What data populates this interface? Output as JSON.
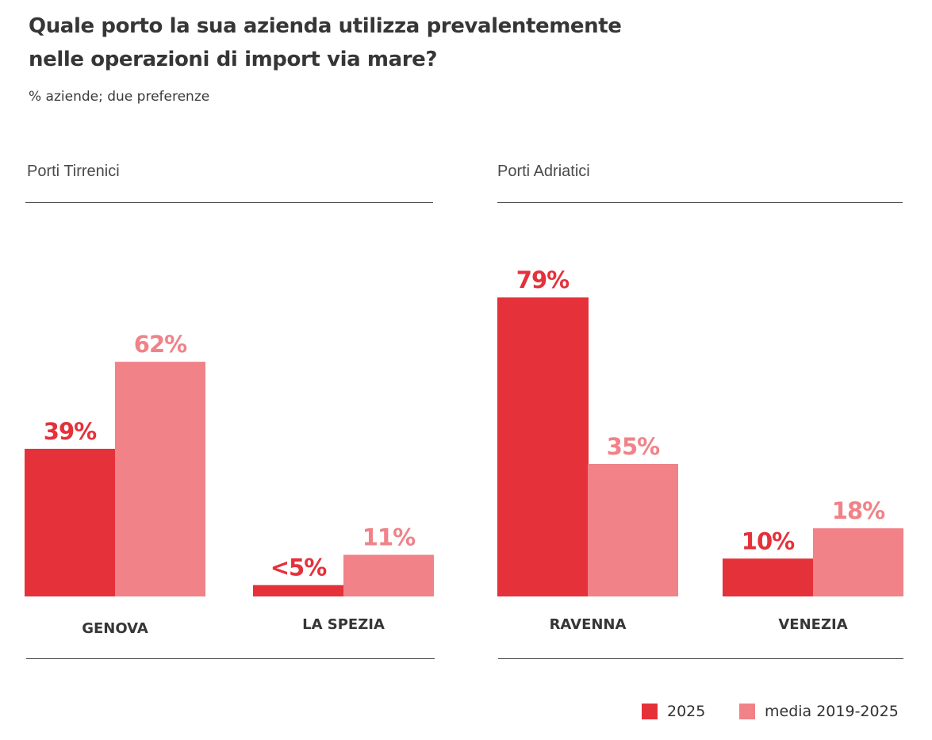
{
  "header": {
    "title_line1": "Quale porto la sua azienda utilizza prevalentemente",
    "title_line2": "nelle operazioni di import via mare?",
    "subtitle": "% aziende; due preferenze"
  },
  "colors": {
    "series_2025": "#e5313a",
    "series_media": "#f08288",
    "category_label": "#363636",
    "rule": "#444444"
  },
  "legend": [
    {
      "label": "2025",
      "color": "#e5313a"
    },
    {
      "label": "media 2019-2025",
      "color": "#f08288"
    }
  ],
  "chart_data": [
    {
      "type": "bar",
      "title": "Porti Tirrenici",
      "categories": [
        "GENOVA",
        "LA SPEZIA"
      ],
      "series": [
        {
          "name": "2025",
          "values": [
            39,
            3
          ],
          "labels": [
            "39%",
            "<5%"
          ]
        },
        {
          "name": "media 2019-2025",
          "values": [
            62,
            11
          ],
          "labels": [
            "62%",
            "11%"
          ]
        }
      ],
      "xlabel": "",
      "ylabel": "% aziende",
      "ylim": [
        0,
        80
      ],
      "grid": false,
      "legend": "bottom-right"
    },
    {
      "type": "bar",
      "title": "Porti Adriatici",
      "categories": [
        "RAVENNA",
        "VENEZIA"
      ],
      "series": [
        {
          "name": "2025",
          "values": [
            79,
            10
          ],
          "labels": [
            "79%",
            "10%"
          ]
        },
        {
          "name": "media 2019-2025",
          "values": [
            35,
            18
          ],
          "labels": [
            "35%",
            "18%"
          ]
        }
      ],
      "xlabel": "",
      "ylabel": "% aziende",
      "ylim": [
        0,
        80
      ],
      "grid": false,
      "legend": "bottom-right"
    }
  ]
}
